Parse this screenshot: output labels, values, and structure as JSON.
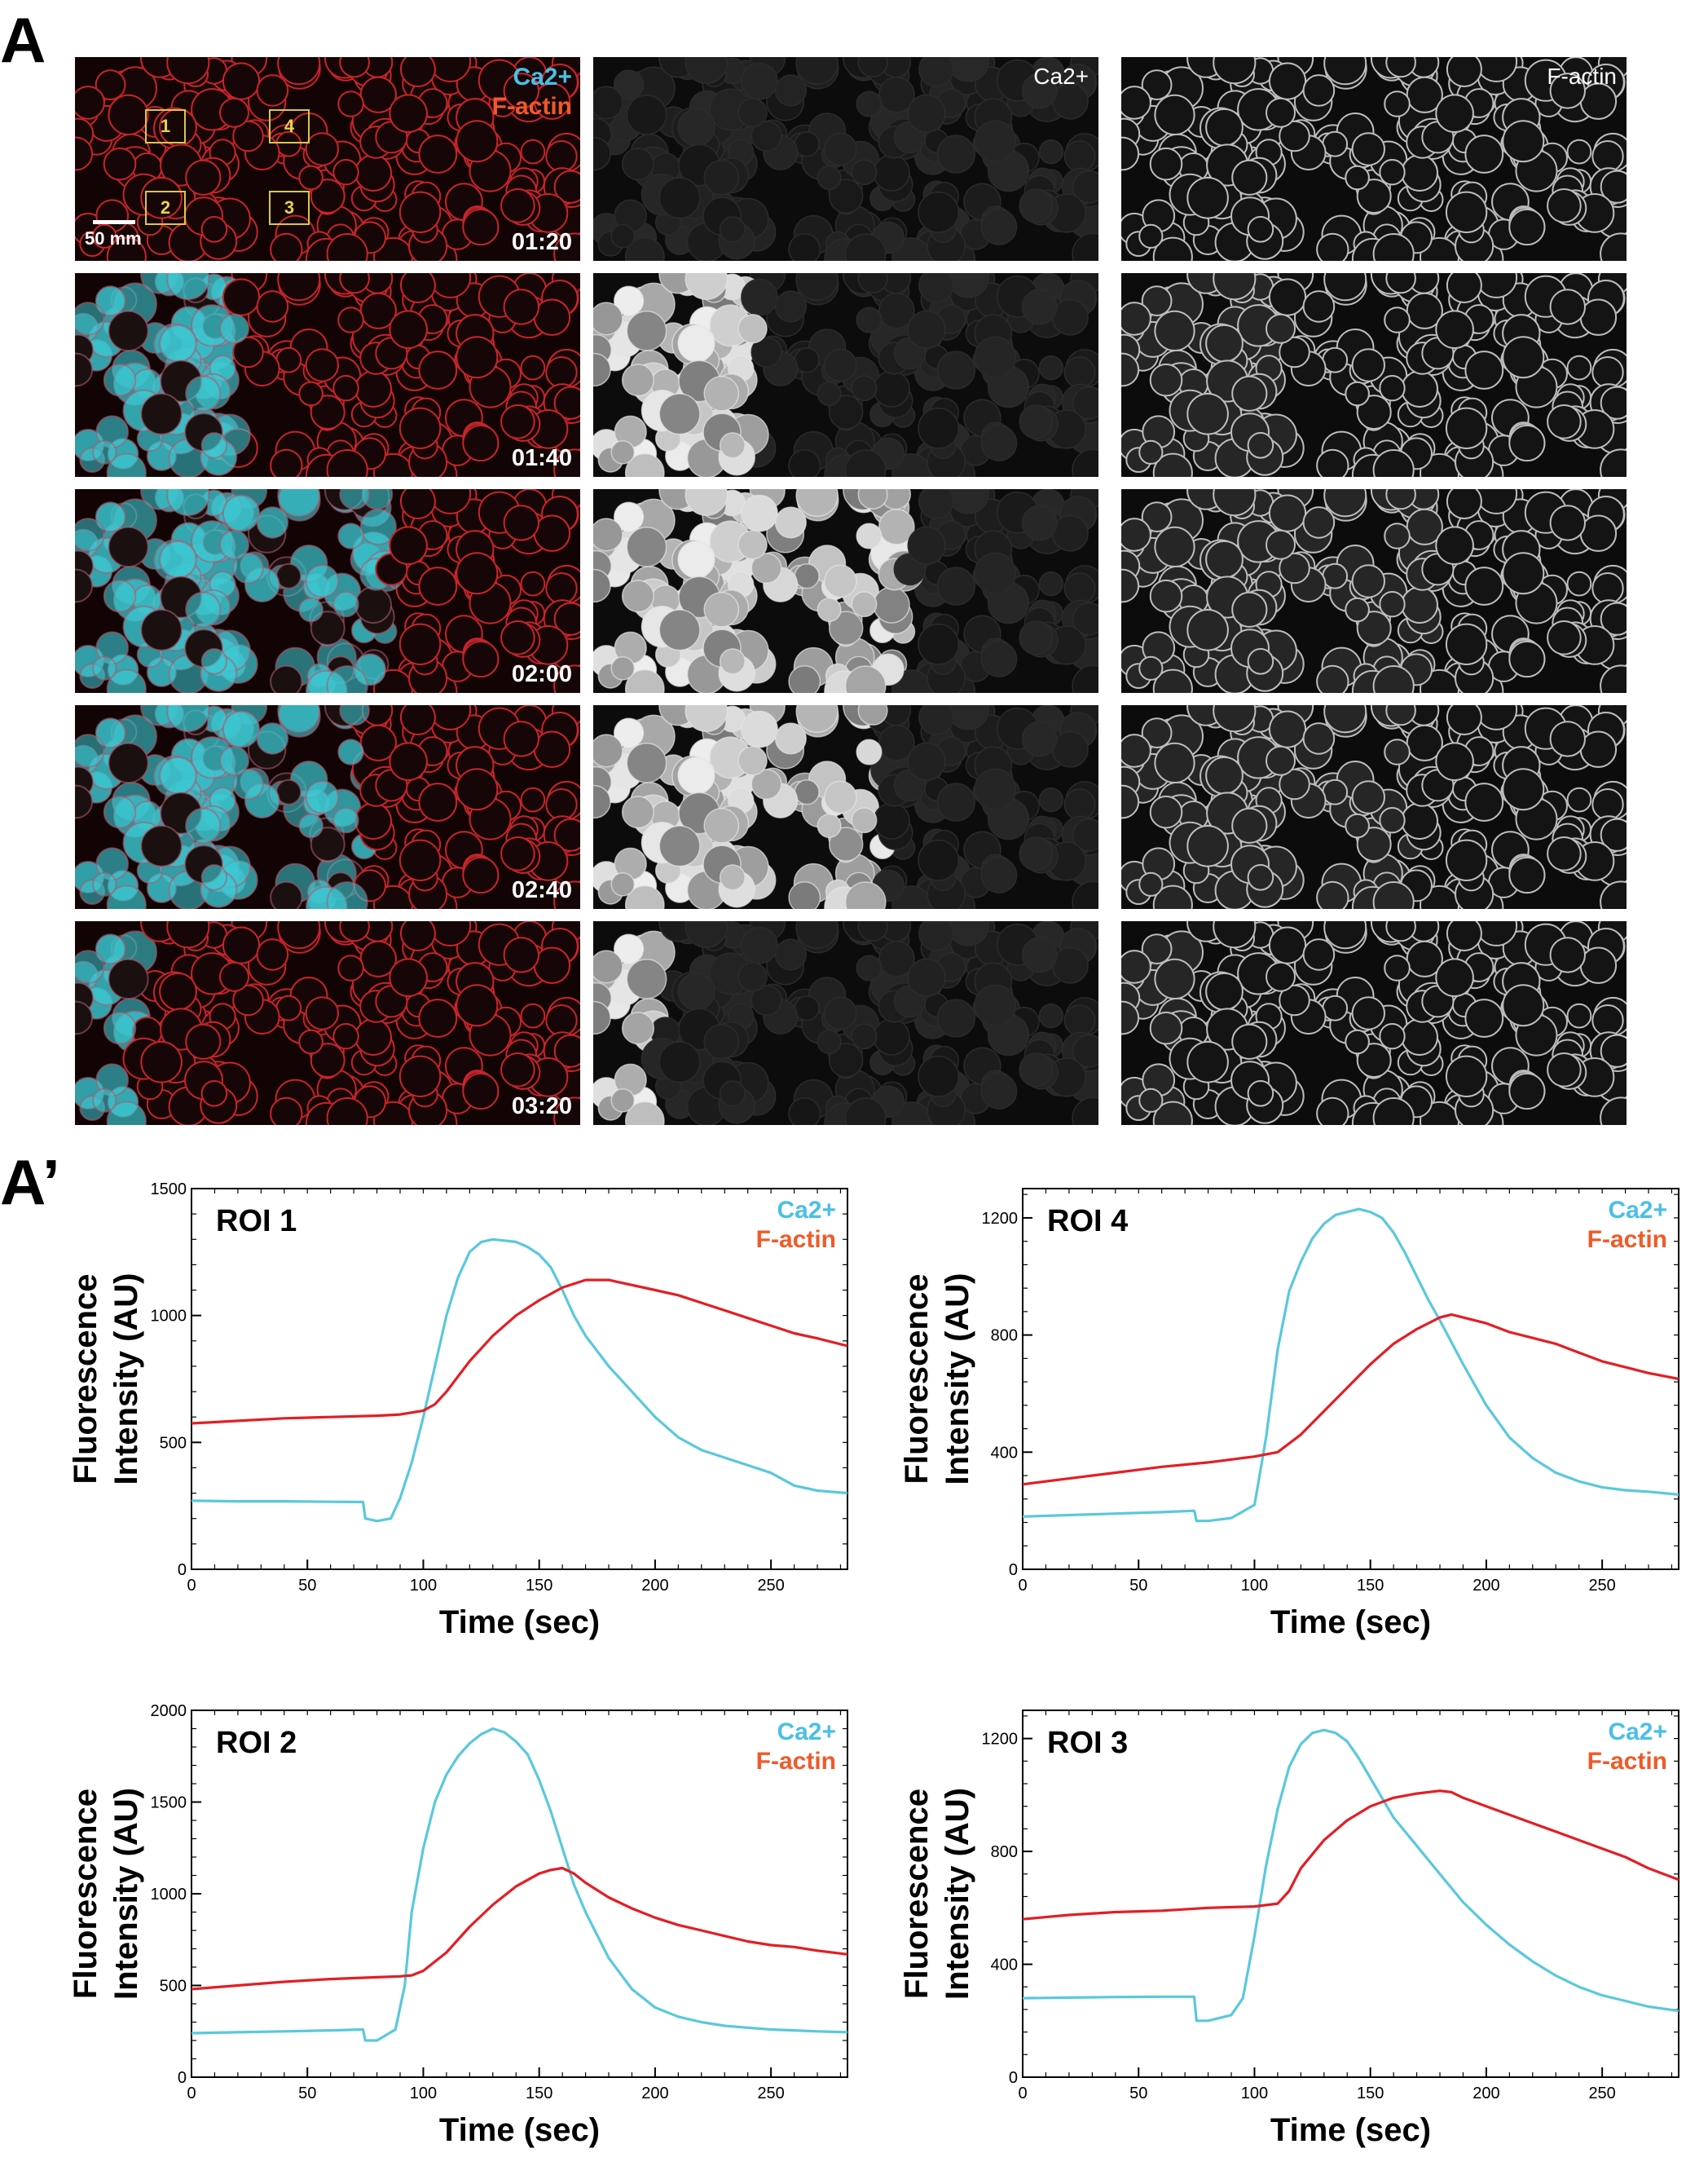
{
  "panels": {
    "top_letter": "A",
    "bottom_letter": "A’"
  },
  "image_grid": {
    "column_labels": {
      "merged_ca": "Ca2+",
      "merged_factin": "F-actin",
      "ca": "Ca2+",
      "factin": "F-actin"
    },
    "timepoints": [
      "01:20",
      "01:40",
      "02:00",
      "02:40",
      "03:20"
    ],
    "ca_wave_extent": [
      0,
      0.32,
      0.62,
      0.58,
      0.12
    ],
    "roi_labels": [
      "1",
      "4",
      "2",
      "3"
    ],
    "scale_bar_label": "50 mm",
    "colors": {
      "ca": "#3ad0d8",
      "factin": "#e0302a",
      "ca_label": "#4bbfe6",
      "factin_label": "#f05a28",
      "roi_box": "#d8c84a"
    }
  },
  "chart_data": [
    {
      "type": "line",
      "title": "ROI 1",
      "xlabel": "Time (sec)",
      "ylabel": [
        "Fluorescence",
        "Intensity (AU)"
      ],
      "xlim": [
        0,
        283
      ],
      "ylim": [
        0,
        1500
      ],
      "xticks": [
        0,
        50,
        100,
        150,
        200,
        250
      ],
      "yticks": [
        0,
        500,
        1000,
        1500
      ],
      "series": [
        {
          "name": "Ca2+",
          "color": "#5ac8dc",
          "x": [
            0,
            20,
            40,
            60,
            74,
            75,
            80,
            86,
            90,
            95,
            100,
            105,
            110,
            115,
            120,
            125,
            130,
            135,
            140,
            145,
            150,
            155,
            160,
            165,
            170,
            180,
            190,
            200,
            210,
            220,
            230,
            240,
            250,
            260,
            270,
            283
          ],
          "y": [
            270,
            268,
            268,
            266,
            265,
            200,
            190,
            200,
            280,
            420,
            600,
            800,
            1000,
            1150,
            1250,
            1290,
            1300,
            1295,
            1290,
            1270,
            1240,
            1190,
            1100,
            1000,
            920,
            800,
            700,
            600,
            520,
            470,
            440,
            410,
            380,
            330,
            310,
            300
          ]
        },
        {
          "name": "F-actin",
          "color": "#e31e24",
          "x": [
            0,
            20,
            40,
            60,
            80,
            90,
            100,
            105,
            110,
            115,
            120,
            130,
            140,
            150,
            160,
            170,
            180,
            190,
            200,
            210,
            220,
            230,
            240,
            250,
            260,
            270,
            283
          ],
          "y": [
            575,
            585,
            595,
            600,
            605,
            610,
            625,
            650,
            700,
            760,
            820,
            920,
            1000,
            1060,
            1110,
            1140,
            1140,
            1120,
            1100,
            1080,
            1050,
            1020,
            990,
            960,
            930,
            910,
            880
          ]
        }
      ]
    },
    {
      "type": "line",
      "title": "ROI 4",
      "xlabel": "Time (sec)",
      "ylabel": [
        "Fluorescence",
        "Intensity (AU)"
      ],
      "xlim": [
        0,
        283
      ],
      "ylim": [
        0,
        1300
      ],
      "xticks": [
        0,
        50,
        100,
        150,
        200,
        250
      ],
      "yticks": [
        0,
        400,
        800,
        1200
      ],
      "series": [
        {
          "name": "Ca2+",
          "color": "#5ac8dc",
          "x": [
            0,
            20,
            40,
            60,
            74,
            75,
            80,
            90,
            100,
            105,
            110,
            115,
            120,
            125,
            130,
            135,
            140,
            145,
            150,
            155,
            160,
            165,
            170,
            175,
            180,
            190,
            200,
            210,
            220,
            230,
            240,
            250,
            260,
            270,
            283
          ],
          "y": [
            180,
            185,
            190,
            195,
            200,
            165,
            165,
            175,
            220,
            450,
            750,
            950,
            1050,
            1130,
            1180,
            1210,
            1220,
            1230,
            1220,
            1200,
            1150,
            1080,
            1000,
            920,
            850,
            700,
            560,
            450,
            380,
            330,
            300,
            280,
            270,
            265,
            255
          ]
        },
        {
          "name": "F-actin",
          "color": "#e31e24",
          "x": [
            0,
            20,
            40,
            60,
            80,
            90,
            100,
            110,
            120,
            130,
            140,
            150,
            160,
            170,
            180,
            185,
            190,
            200,
            210,
            220,
            230,
            240,
            250,
            260,
            270,
            283
          ],
          "y": [
            290,
            310,
            330,
            350,
            365,
            375,
            385,
            400,
            460,
            540,
            620,
            700,
            770,
            820,
            860,
            870,
            860,
            840,
            810,
            790,
            770,
            740,
            710,
            690,
            670,
            650
          ]
        }
      ]
    },
    {
      "type": "line",
      "title": "ROI 2",
      "xlabel": "Time (sec)",
      "ylabel": [
        "Fluorescence",
        "Intensity (AU)"
      ],
      "xlim": [
        0,
        283
      ],
      "ylim": [
        0,
        2000
      ],
      "xticks": [
        0,
        50,
        100,
        150,
        200,
        250
      ],
      "yticks": [
        0,
        500,
        1000,
        1500,
        2000
      ],
      "series": [
        {
          "name": "Ca2+",
          "color": "#5ac8dc",
          "x": [
            0,
            20,
            40,
            60,
            74,
            75,
            80,
            88,
            92,
            95,
            100,
            105,
            110,
            115,
            120,
            125,
            130,
            135,
            140,
            145,
            150,
            155,
            160,
            165,
            170,
            180,
            190,
            200,
            210,
            220,
            230,
            240,
            250,
            260,
            270,
            283
          ],
          "y": [
            240,
            245,
            250,
            255,
            260,
            200,
            200,
            260,
            500,
            900,
            1250,
            1500,
            1650,
            1750,
            1820,
            1870,
            1900,
            1880,
            1830,
            1760,
            1620,
            1450,
            1250,
            1050,
            900,
            650,
            480,
            380,
            330,
            300,
            280,
            270,
            260,
            255,
            250,
            245
          ]
        },
        {
          "name": "F-actin",
          "color": "#e31e24",
          "x": [
            0,
            20,
            40,
            60,
            80,
            90,
            95,
            100,
            110,
            120,
            130,
            140,
            150,
            155,
            160,
            165,
            170,
            180,
            190,
            200,
            210,
            220,
            230,
            240,
            250,
            260,
            270,
            283
          ],
          "y": [
            480,
            500,
            520,
            535,
            545,
            550,
            555,
            580,
            680,
            820,
            940,
            1040,
            1110,
            1130,
            1140,
            1110,
            1060,
            980,
            920,
            870,
            830,
            800,
            770,
            740,
            720,
            710,
            690,
            670
          ]
        }
      ]
    },
    {
      "type": "line",
      "title": "ROI 3",
      "xlabel": "Time (sec)",
      "ylabel": [
        "Fluorescence",
        "Intensity (AU)"
      ],
      "xlim": [
        0,
        283
      ],
      "ylim": [
        0,
        1300
      ],
      "xticks": [
        0,
        50,
        100,
        150,
        200,
        250
      ],
      "yticks": [
        0,
        400,
        800,
        1200
      ],
      "series": [
        {
          "name": "Ca2+",
          "color": "#5ac8dc",
          "x": [
            0,
            20,
            40,
            60,
            74,
            75,
            80,
            90,
            95,
            100,
            105,
            110,
            115,
            120,
            125,
            130,
            135,
            140,
            145,
            150,
            155,
            160,
            170,
            180,
            190,
            200,
            210,
            220,
            230,
            240,
            250,
            260,
            270,
            283
          ],
          "y": [
            280,
            282,
            284,
            285,
            285,
            200,
            200,
            220,
            280,
            500,
            750,
            950,
            1100,
            1180,
            1220,
            1230,
            1220,
            1190,
            1130,
            1060,
            990,
            920,
            820,
            720,
            620,
            540,
            470,
            410,
            360,
            320,
            290,
            270,
            250,
            235
          ]
        },
        {
          "name": "F-actin",
          "color": "#e31e24",
          "x": [
            0,
            20,
            40,
            60,
            80,
            100,
            110,
            115,
            120,
            130,
            140,
            150,
            160,
            170,
            180,
            185,
            190,
            200,
            210,
            220,
            230,
            240,
            250,
            260,
            270,
            283
          ],
          "y": [
            560,
            575,
            585,
            590,
            600,
            605,
            615,
            660,
            740,
            840,
            910,
            960,
            990,
            1005,
            1015,
            1010,
            990,
            960,
            930,
            900,
            870,
            840,
            810,
            780,
            740,
            700
          ]
        }
      ]
    }
  ]
}
